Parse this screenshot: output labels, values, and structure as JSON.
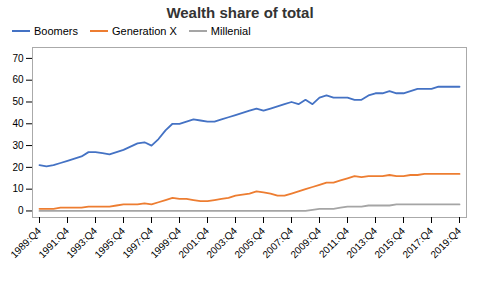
{
  "chart_data": {
    "type": "line",
    "title": "Wealth share of total",
    "categories": [
      "1989:Q4",
      null,
      null,
      null,
      "1991:Q4",
      null,
      null,
      null,
      "1993:Q4",
      null,
      null,
      null,
      "1995:Q4",
      null,
      null,
      null,
      "1997:Q4",
      null,
      null,
      null,
      "1999:Q4",
      null,
      null,
      null,
      "2001:Q4",
      null,
      null,
      null,
      "2003:Q4",
      null,
      null,
      null,
      "2005:Q4",
      null,
      null,
      null,
      "2007:Q4",
      null,
      null,
      null,
      "2009:Q4",
      null,
      null,
      null,
      "2011:Q4",
      null,
      null,
      null,
      "2013:Q4",
      null,
      null,
      null,
      "2015:Q4",
      null,
      null,
      null,
      "2017:Q4",
      null,
      null,
      null,
      "2019:Q4"
    ],
    "series": [
      {
        "name": "Boomers",
        "color": "#4472C4",
        "values": [
          21,
          20.5,
          21,
          22,
          23,
          24,
          25,
          27,
          27,
          26.5,
          26,
          27,
          28,
          29.5,
          31,
          31.5,
          30,
          33,
          37,
          40,
          40,
          41,
          42,
          41.5,
          41,
          41,
          42,
          43,
          44,
          45,
          46,
          47,
          46,
          47,
          48,
          49,
          50,
          49,
          51,
          49,
          52,
          53,
          52,
          52,
          52,
          51,
          51,
          53,
          54,
          54,
          55,
          54,
          54,
          55,
          56,
          56,
          56,
          57,
          57,
          57,
          57
        ]
      },
      {
        "name": "Generation X",
        "color": "#ED7D31",
        "values": [
          1,
          1,
          1,
          1.5,
          1.5,
          1.5,
          1.5,
          2,
          2,
          2,
          2,
          2.5,
          3,
          3,
          3,
          3.5,
          3,
          4,
          5,
          6,
          5.5,
          5.5,
          5,
          4.5,
          4.5,
          5,
          5.5,
          6,
          7,
          7.5,
          8,
          9,
          8.5,
          8,
          7,
          7,
          8,
          9,
          10,
          11,
          12,
          13,
          13,
          14,
          15,
          16,
          15.5,
          16,
          16,
          16,
          16.5,
          16,
          16,
          16.5,
          16.5,
          17,
          17,
          17,
          17,
          17,
          17
        ]
      },
      {
        "name": "Millenial",
        "color": "#A5A5A5",
        "values": [
          0,
          0,
          0,
          0,
          0,
          0,
          0,
          0,
          0,
          0,
          0,
          0,
          0,
          0,
          0,
          0,
          0,
          0,
          0,
          0,
          0,
          0,
          0,
          0,
          0,
          0,
          0,
          0,
          0,
          0,
          0,
          0,
          0,
          0,
          0,
          0,
          0,
          0,
          0,
          0.5,
          1,
          1,
          1,
          1.5,
          2,
          2,
          2,
          2.5,
          2.5,
          2.5,
          2.5,
          3,
          3,
          3,
          3,
          3,
          3,
          3,
          3,
          3,
          3
        ]
      }
    ],
    "ylim": [
      -3,
      75
    ],
    "yticks": [
      0,
      10,
      20,
      30,
      40,
      50,
      60,
      70
    ],
    "grid": false,
    "legend": "upper-left"
  }
}
